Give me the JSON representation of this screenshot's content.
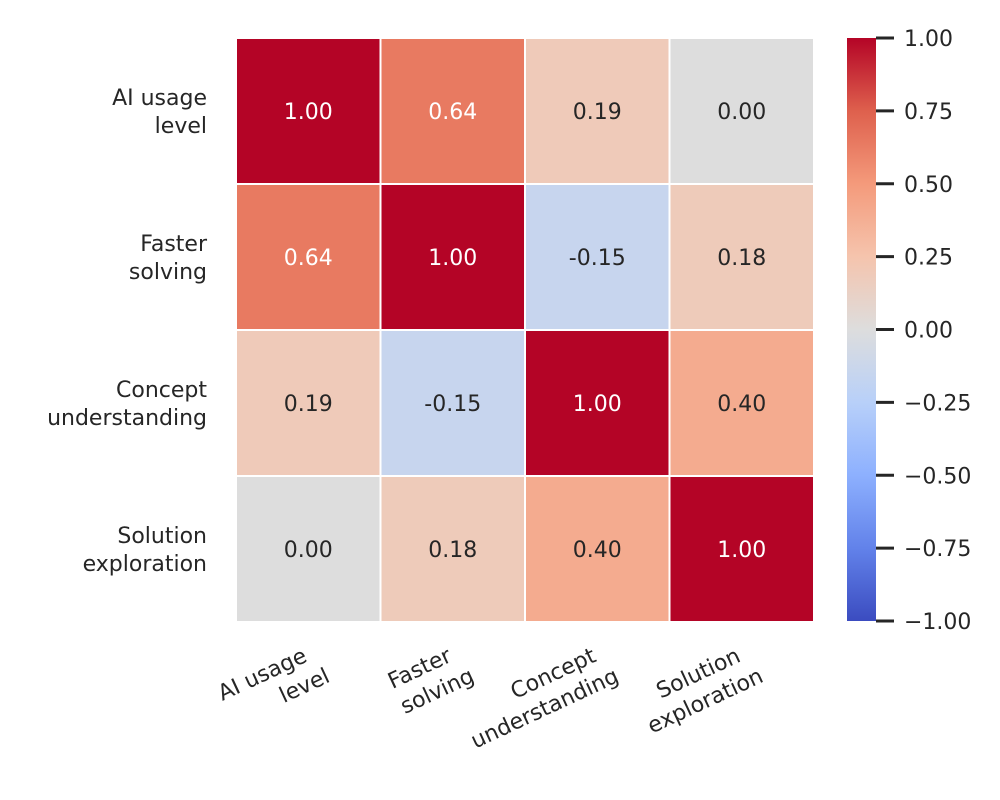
{
  "chart_data": {
    "type": "heatmap",
    "title": "",
    "xlabel": "",
    "ylabel": "",
    "row_labels": [
      [
        "AI usage",
        "level"
      ],
      [
        "Faster",
        "solving"
      ],
      [
        "Concept",
        "understanding"
      ],
      [
        "Solution",
        "exploration"
      ]
    ],
    "col_labels": [
      [
        "AI usage",
        "level"
      ],
      [
        "Faster",
        "solving"
      ],
      [
        "Concept",
        "understanding"
      ],
      [
        "Solution",
        "exploration"
      ]
    ],
    "values": [
      [
        1.0,
        0.64,
        0.19,
        0.0
      ],
      [
        0.64,
        1.0,
        -0.15,
        0.18
      ],
      [
        0.19,
        -0.15,
        1.0,
        0.4
      ],
      [
        0.0,
        0.18,
        0.4,
        1.0
      ]
    ],
    "value_labels": [
      [
        "1.00",
        "0.64",
        "0.19",
        "0.00"
      ],
      [
        "0.64",
        "1.00",
        "-0.15",
        "0.18"
      ],
      [
        "0.19",
        "-0.15",
        "1.00",
        "0.40"
      ],
      [
        "0.00",
        "0.18",
        "0.40",
        "1.00"
      ]
    ],
    "vmin": -1.0,
    "vmax": 1.0,
    "colormap": "coolwarm",
    "colorbar": {
      "position": "right",
      "ticks": [
        1.0,
        0.75,
        0.5,
        0.25,
        0.0,
        -0.25,
        -0.5,
        -0.75,
        -1.0
      ],
      "tick_labels": [
        "1.00",
        "0.75",
        "0.50",
        "0.25",
        "0.00",
        "−0.25",
        "−0.50",
        "−0.75",
        "−1.00"
      ]
    },
    "colors": {
      "grid_line": "#ffffff",
      "text_dark": "#262626",
      "text_light": "#ffffff"
    }
  }
}
